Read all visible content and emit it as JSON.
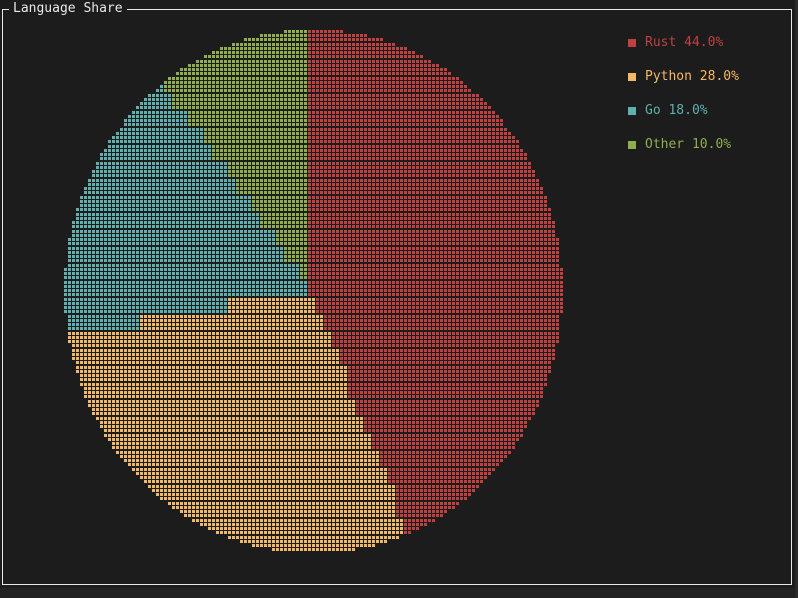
{
  "panel": {
    "title": "Language Share"
  },
  "chart_data": {
    "type": "pie",
    "title": "Language Share",
    "categories": [
      "Rust",
      "Python",
      "Go",
      "Other"
    ],
    "values": [
      44.0,
      28.0,
      18.0,
      10.0
    ],
    "colors": [
      "#c0403f",
      "#f2b767",
      "#5fb0ae",
      "#8fae4e"
    ],
    "legend_position": "top-right",
    "start_angle": "12 o'clock, clockwise",
    "render_style": "braille dot matrix"
  },
  "legend": {
    "items": [
      {
        "label": "Rust 44.0%",
        "color": "#c0403f"
      },
      {
        "label": "Python 28.0%",
        "color": "#f2b767"
      },
      {
        "label": "Go 18.0%",
        "color": "#5fb0ae"
      },
      {
        "label": "Other 10.0%",
        "color": "#8fae4e"
      }
    ]
  }
}
